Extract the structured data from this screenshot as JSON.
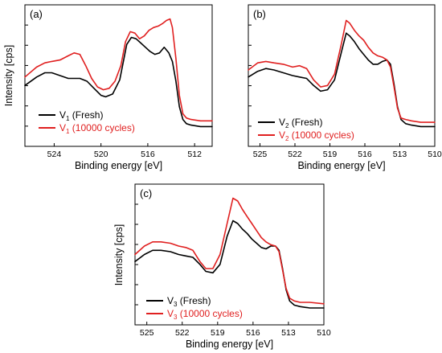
{
  "chart_data": [
    {
      "type": "line",
      "panel_label": "(a)",
      "xlabel": "Binding energy [eV]",
      "ylabel": "Intensity [cps]",
      "xlim": [
        526.5,
        510.5
      ],
      "ylim": [
        0,
        1
      ],
      "x_reversed": true,
      "xticks": [
        524,
        520,
        516,
        512
      ],
      "xtick_labels": [
        "524",
        "520",
        "516",
        "512"
      ],
      "series": [
        {
          "name": "V1 (Fresh)",
          "legend_main": "V",
          "legend_sub": "1",
          "legend_rest": " (Fresh)",
          "color": "#000000",
          "x": [
            526.5,
            525.5,
            524.8,
            524.2,
            523.5,
            522.8,
            522.3,
            521.8,
            521.2,
            520.6,
            520.0,
            519.6,
            519.0,
            518.4,
            517.8,
            517.4,
            517.0,
            516.6,
            516.2,
            515.8,
            515.4,
            515.0,
            514.6,
            514.2,
            513.9,
            513.6,
            513.3,
            513.0,
            512.7,
            512.3,
            511.5,
            510.5
          ],
          "y": [
            0.43,
            0.49,
            0.52,
            0.52,
            0.5,
            0.48,
            0.48,
            0.48,
            0.46,
            0.41,
            0.36,
            0.35,
            0.37,
            0.47,
            0.72,
            0.77,
            0.76,
            0.73,
            0.7,
            0.67,
            0.65,
            0.66,
            0.7,
            0.66,
            0.6,
            0.46,
            0.28,
            0.19,
            0.16,
            0.15,
            0.14,
            0.14
          ]
        },
        {
          "name": "V1 (10000 cycles)",
          "legend_main": "V",
          "legend_sub": "1",
          "legend_rest": " (10000 cycles)",
          "color": "#e02020",
          "x": [
            526.5,
            525.5,
            524.8,
            524.2,
            523.5,
            522.8,
            522.3,
            521.8,
            521.3,
            520.8,
            520.3,
            519.8,
            519.3,
            518.8,
            518.3,
            517.9,
            517.5,
            517.1,
            516.7,
            516.3,
            515.9,
            515.5,
            515.1,
            514.7,
            514.4,
            514.1,
            513.9,
            513.6,
            513.3,
            513.0,
            512.7,
            512.3,
            511.5,
            510.5
          ],
          "y": [
            0.49,
            0.56,
            0.59,
            0.6,
            0.61,
            0.64,
            0.66,
            0.65,
            0.57,
            0.48,
            0.42,
            0.4,
            0.41,
            0.46,
            0.57,
            0.74,
            0.81,
            0.8,
            0.76,
            0.78,
            0.82,
            0.84,
            0.85,
            0.87,
            0.89,
            0.9,
            0.84,
            0.62,
            0.36,
            0.23,
            0.2,
            0.19,
            0.18,
            0.18
          ]
        }
      ]
    },
    {
      "type": "line",
      "panel_label": "(b)",
      "xlabel": "Binding energy [eV]",
      "ylabel": "",
      "xlim": [
        526.0,
        510.0
      ],
      "ylim": [
        0,
        1
      ],
      "x_reversed": true,
      "xticks": [
        525,
        522,
        519,
        516,
        513,
        510
      ],
      "xtick_labels": [
        "525",
        "522",
        "519",
        "516",
        "513",
        "510"
      ],
      "series": [
        {
          "name": "V2 (Fresh)",
          "legend_main": "V",
          "legend_sub": "2",
          "legend_rest": " (Fresh)",
          "color": "#000000",
          "x": [
            526.0,
            525.2,
            524.5,
            523.8,
            523.0,
            522.2,
            521.6,
            521.0,
            520.4,
            519.8,
            519.2,
            518.6,
            518.0,
            517.6,
            517.3,
            516.9,
            516.5,
            516.1,
            515.7,
            515.3,
            514.9,
            514.5,
            514.1,
            513.8,
            513.5,
            513.2,
            512.9,
            512.5,
            512.0,
            511.2,
            510.0
          ],
          "y": [
            0.49,
            0.53,
            0.55,
            0.54,
            0.52,
            0.5,
            0.49,
            0.48,
            0.43,
            0.39,
            0.4,
            0.47,
            0.67,
            0.8,
            0.78,
            0.74,
            0.69,
            0.65,
            0.61,
            0.58,
            0.58,
            0.6,
            0.61,
            0.58,
            0.44,
            0.28,
            0.19,
            0.16,
            0.15,
            0.14,
            0.14
          ]
        },
        {
          "name": "V2 (10000 cycles)",
          "legend_main": "V",
          "legend_sub": "2",
          "legend_rest": " (10000 cycles)",
          "color": "#e02020",
          "x": [
            526.0,
            525.2,
            524.5,
            523.8,
            523.0,
            522.2,
            521.6,
            521.0,
            520.4,
            519.8,
            519.2,
            518.6,
            518.0,
            517.6,
            517.3,
            516.9,
            516.5,
            516.1,
            515.7,
            515.3,
            514.9,
            514.5,
            514.1,
            513.8,
            513.5,
            513.2,
            512.9,
            512.5,
            512.0,
            511.2,
            510.0
          ],
          "y": [
            0.54,
            0.59,
            0.6,
            0.59,
            0.58,
            0.56,
            0.57,
            0.55,
            0.47,
            0.42,
            0.43,
            0.51,
            0.73,
            0.89,
            0.87,
            0.82,
            0.78,
            0.75,
            0.7,
            0.66,
            0.64,
            0.63,
            0.61,
            0.56,
            0.42,
            0.27,
            0.2,
            0.19,
            0.18,
            0.17,
            0.17
          ]
        }
      ]
    },
    {
      "type": "line",
      "panel_label": "(c)",
      "xlabel": "Binding energy [eV]",
      "ylabel": "Intensity [cps]",
      "xlim": [
        526.0,
        510.0
      ],
      "ylim": [
        0,
        1
      ],
      "x_reversed": true,
      "xticks": [
        525,
        522,
        519,
        516,
        513,
        510
      ],
      "xtick_labels": [
        "525",
        "522",
        "519",
        "516",
        "513",
        "510"
      ],
      "series": [
        {
          "name": "V3 (Fresh)",
          "legend_main": "V",
          "legend_sub": "3",
          "legend_rest": " (Fresh)",
          "color": "#000000",
          "x": [
            526.0,
            525.2,
            524.5,
            523.8,
            523.0,
            522.3,
            521.7,
            521.1,
            520.5,
            520.0,
            519.4,
            518.8,
            518.2,
            517.7,
            517.3,
            516.9,
            516.5,
            516.1,
            515.7,
            515.3,
            514.9,
            514.5,
            514.1,
            513.8,
            513.5,
            513.2,
            512.9,
            512.5,
            512.0,
            511.2,
            510.0
          ],
          "y": [
            0.45,
            0.5,
            0.53,
            0.53,
            0.52,
            0.5,
            0.49,
            0.48,
            0.43,
            0.38,
            0.37,
            0.43,
            0.63,
            0.74,
            0.72,
            0.68,
            0.65,
            0.61,
            0.58,
            0.55,
            0.54,
            0.56,
            0.56,
            0.53,
            0.4,
            0.25,
            0.17,
            0.14,
            0.13,
            0.12,
            0.12
          ]
        },
        {
          "name": "V3 (10000 cycles)",
          "legend_main": "V",
          "legend_sub": "3",
          "legend_rest": " (10000 cycles)",
          "color": "#e02020",
          "x": [
            526.0,
            525.2,
            524.5,
            523.8,
            523.0,
            522.3,
            521.7,
            521.1,
            520.5,
            520.0,
            519.4,
            518.8,
            518.2,
            517.7,
            517.3,
            516.9,
            516.5,
            516.1,
            515.7,
            515.3,
            514.9,
            514.5,
            514.1,
            513.8,
            513.5,
            513.2,
            512.9,
            512.5,
            512.0,
            511.2,
            510.0
          ],
          "y": [
            0.5,
            0.56,
            0.59,
            0.59,
            0.58,
            0.56,
            0.55,
            0.53,
            0.45,
            0.4,
            0.4,
            0.5,
            0.72,
            0.9,
            0.88,
            0.82,
            0.77,
            0.72,
            0.67,
            0.62,
            0.59,
            0.57,
            0.56,
            0.52,
            0.39,
            0.26,
            0.19,
            0.17,
            0.16,
            0.16,
            0.15
          ]
        }
      ]
    }
  ]
}
